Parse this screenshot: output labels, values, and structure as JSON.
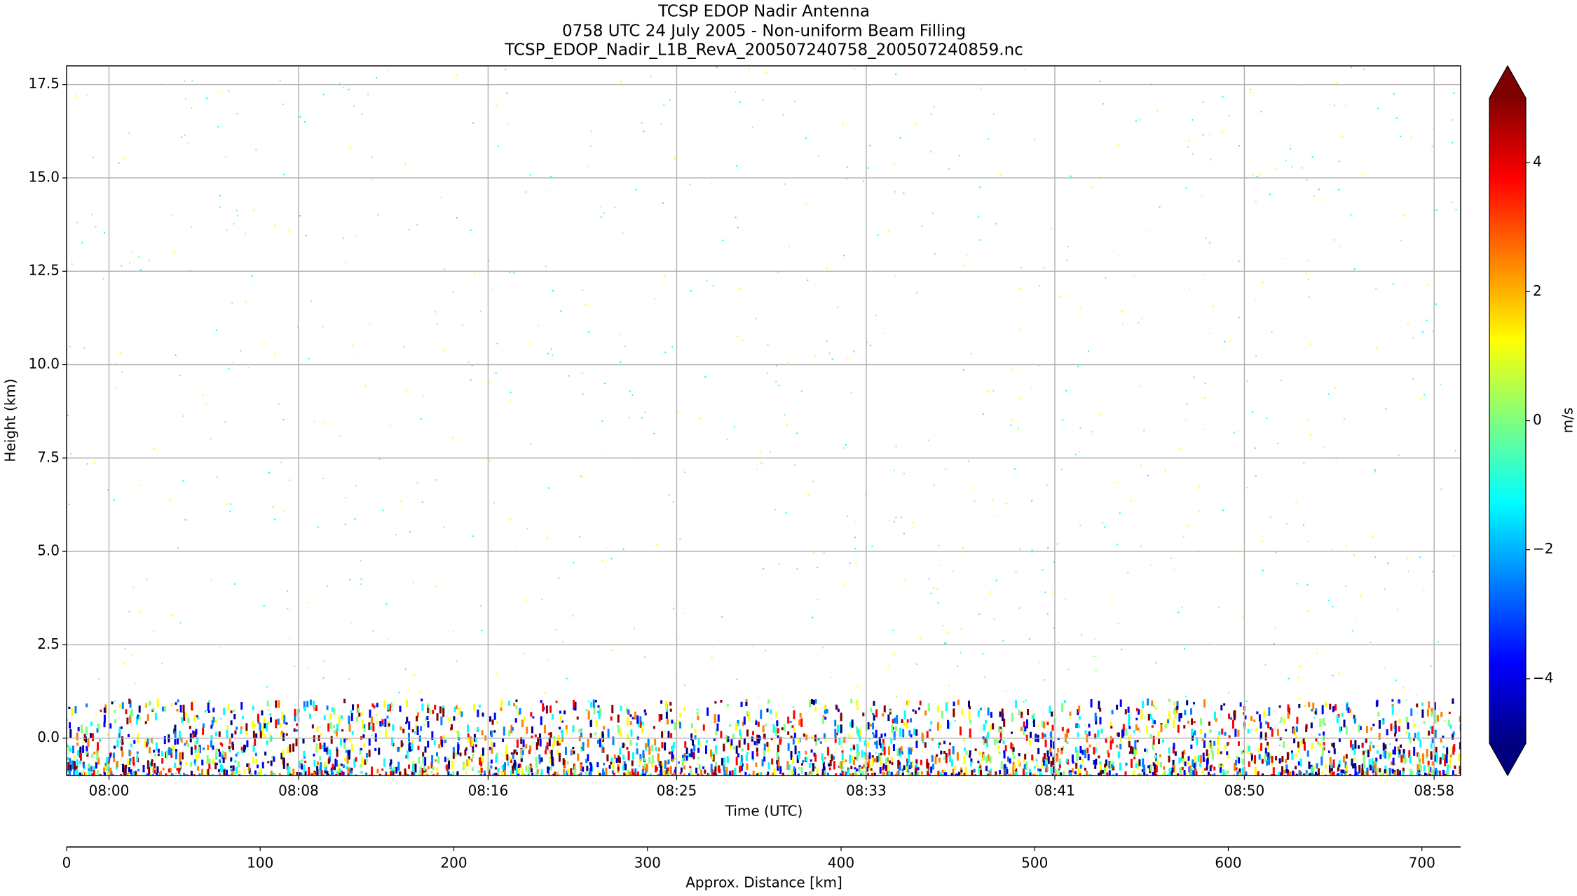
{
  "chart_data": {
    "type": "radar-section",
    "title": [
      "TCSP EDOP Nadir Antenna",
      "0758 UTC 24 July 2005 - Non-uniform Beam Filling",
      "TCSP_EDOP_Nadir_L1B_RevA_200507240758_200507240859.nc"
    ],
    "ylabel": "Height (km)",
    "xlabel": "Time (UTC)",
    "x2label": "Approx. Distance [km]",
    "ylim": [
      -1,
      18
    ],
    "yticks": [
      {
        "value": 0,
        "label": "0.0"
      },
      {
        "value": 2.5,
        "label": "2.5"
      },
      {
        "value": 5,
        "label": "5.0"
      },
      {
        "value": 7.5,
        "label": "7.5"
      },
      {
        "value": 10,
        "label": "10.0"
      },
      {
        "value": 12.5,
        "label": "12.5"
      },
      {
        "value": 15,
        "label": "15.0"
      },
      {
        "value": 17.5,
        "label": "17.5"
      }
    ],
    "xlim": [
      0,
      720
    ],
    "xticks": [
      {
        "value": 21.9,
        "label": "08:00"
      },
      {
        "value": 119.8,
        "label": "08:08"
      },
      {
        "value": 217.7,
        "label": "08:16"
      },
      {
        "value": 315.1,
        "label": "08:25"
      },
      {
        "value": 413,
        "label": "08:33"
      },
      {
        "value": 510.4,
        "label": "08:41"
      },
      {
        "value": 608.3,
        "label": "08:50"
      },
      {
        "value": 706.3,
        "label": "08:58"
      }
    ],
    "x2ticks": [
      0,
      100,
      200,
      300,
      400,
      500,
      600,
      700
    ],
    "grid": true,
    "colorbar": {
      "label": "m/s",
      "clim": [
        -5,
        5
      ],
      "ticks": [
        {
          "value": -4,
          "label": "−4"
        },
        {
          "value": -2,
          "label": "−2"
        },
        0,
        2,
        4
      ],
      "colormap": [
        "#00007f",
        "#0000ff",
        "#007fff",
        "#00ffff",
        "#7fff7f",
        "#ffff00",
        "#ff7f00",
        "#ff0000",
        "#7f0000"
      ]
    }
  }
}
